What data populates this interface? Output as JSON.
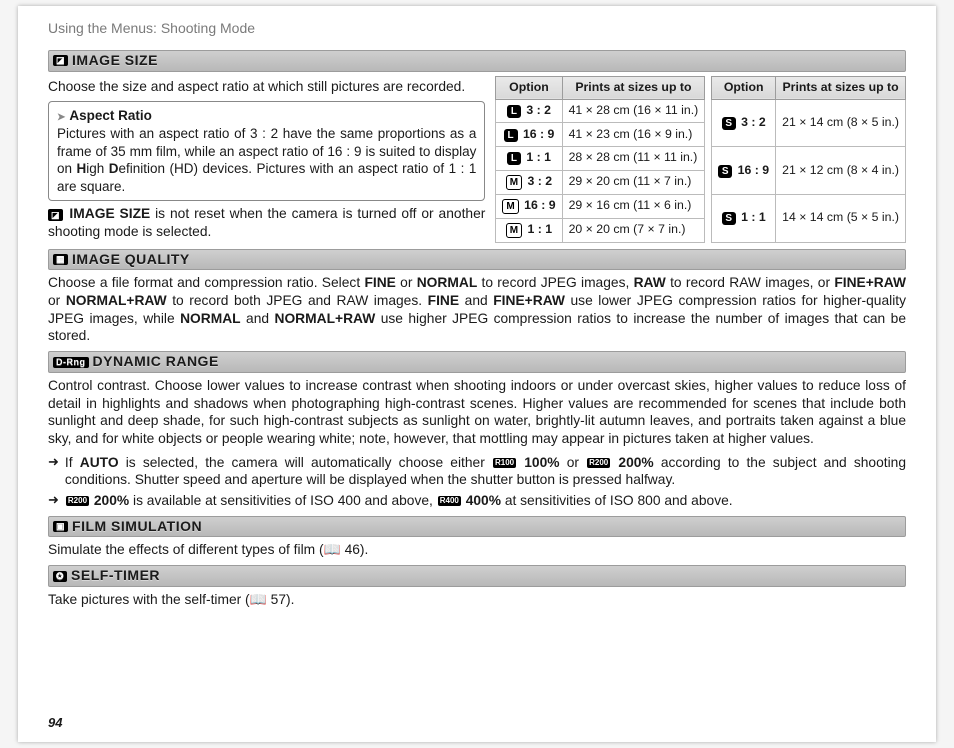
{
  "running_head": "Using the Menus: Shooting Mode",
  "page_number": "94",
  "image_size": {
    "header": "IMAGE SIZE",
    "intro": "Choose the size and aspect ratio at which still pictures are recorded.",
    "note_title": "Aspect Ratio",
    "note_body_html": "Pictures with an aspect ratio of 3 : 2 have the same proportions as a frame of 35 mm film, while an aspect ratio of 16 : 9 is suited to display on <b>H</b>igh <b>D</b>efinition (HD) devices.  Pictures with an aspect ratio of 1 : 1 are square.",
    "reset_note_html": "<b>IMAGE SIZE</b> is not reset when the camera is turned off or another shooting mode is selected.",
    "table_headers": {
      "option": "Option",
      "sizes": "Prints at sizes up to"
    },
    "table1": [
      {
        "badge": "L",
        "badge_style": "b",
        "ratio": "3 : 2",
        "size": "41 × 28 cm (16 × 11 in.)"
      },
      {
        "badge": "L",
        "badge_style": "b",
        "ratio": "16 : 9",
        "size": "41 × 23 cm (16 × 9 in.)"
      },
      {
        "badge": "L",
        "badge_style": "b",
        "ratio": "1 : 1",
        "size": "28 × 28 cm (11 × 11 in.)"
      },
      {
        "badge": "M",
        "badge_style": "w",
        "ratio": "3 : 2",
        "size": "29 × 20 cm (11 × 7 in.)"
      },
      {
        "badge": "M",
        "badge_style": "w",
        "ratio": "16 : 9",
        "size": "29 × 16 cm (11 × 6 in.)"
      },
      {
        "badge": "M",
        "badge_style": "w",
        "ratio": "1 : 1",
        "size": "20 × 20 cm (7 × 7 in.)"
      }
    ],
    "table2": [
      {
        "badge": "S",
        "badge_style": "b",
        "ratio": "3 : 2",
        "size": "21 × 14 cm (8 × 5 in.)"
      },
      {
        "badge": "S",
        "badge_style": "b",
        "ratio": "16 : 9",
        "size": "21 × 12 cm (8 × 4 in.)"
      },
      {
        "badge": "S",
        "badge_style": "b",
        "ratio": "1 : 1",
        "size": "14 × 14 cm (5 × 5 in.)"
      }
    ]
  },
  "image_quality": {
    "header": "IMAGE QUALITY",
    "body_html": "Choose a file format and compression ratio.  Select <b>FINE</b> or <b>NORMAL</b> to record JPEG images, <b>RAW</b> to record RAW images, or <b>FINE+RAW</b> or <b>NORMAL+RAW</b> to record both JPEG and RAW images.  <b>FINE</b> and <b>FINE+RAW</b> use lower JPEG compression ratios for higher-quality JPEG images, while <b>NORMAL</b> and <b>NORMAL+RAW</b> use higher JPEG compression ratios to increase the number of images that can be stored."
  },
  "dynamic_range": {
    "header": "DYNAMIC RANGE",
    "body": "Control contrast.  Choose lower values to increase contrast when shooting indoors or under overcast skies, higher values to reduce loss of detail in highlights and shadows when photographing high-contrast scenes.  Higher values are recommended for scenes that include both sunlight and deep shade, for such high-contrast subjects as sunlight on water, brightly-lit autumn leaves, and portraits taken against a blue sky, and for white objects or people wearing white; note, however, that mottling may appear in pictures taken at higher values.",
    "bullet1_html": "If <b>AUTO</b> is selected, the camera will automatically choose either <span class=\"iconchip\">R100</span> <b>100%</b> or <span class=\"iconchip\">R200</span> <b>200%</b> according to the subject and shooting conditions. Shutter speed and aperture will be displayed when the shutter button is pressed halfway.",
    "bullet2_html": "<span class=\"iconchip\">R200</span> <b>200%</b> is available at sensitivities of ISO 400 and above, <span class=\"iconchip\">R400</span> <b>400%</b> at sensitivities of ISO 800 and above."
  },
  "film_sim": {
    "header": "FILM SIMULATION",
    "body_html": "Simulate the effects of different types of film (📖 46)."
  },
  "self_timer": {
    "header": "SELF-TIMER",
    "body_html": "Take pictures with the self-timer (📖 57)."
  }
}
